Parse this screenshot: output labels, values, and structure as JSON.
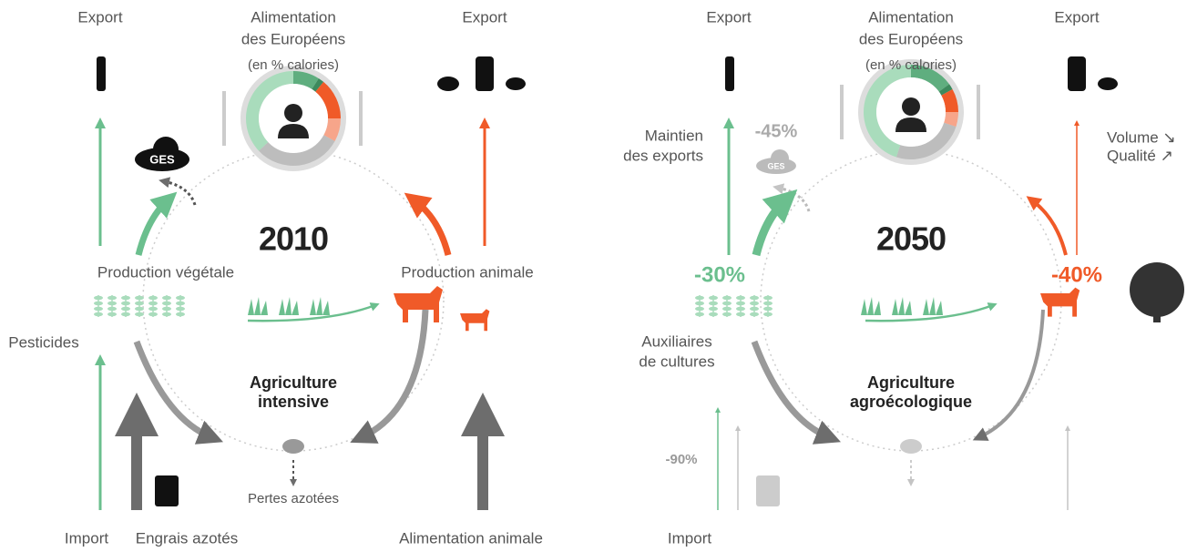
{
  "panels": [
    {
      "export_left": "Export",
      "diet_title": [
        "Alimentation",
        "des Européens"
      ],
      "diet_unit": "(en % calories)",
      "export_right": "Export",
      "ges": "GES",
      "year": "2010",
      "plant": "Production végétale",
      "animal": "Production animale",
      "pesticides": "Pesticides",
      "agriculture": [
        "Agriculture",
        "intensive"
      ],
      "losses": "Pertes azotées",
      "import": "Import",
      "fertilizer": "Engrais azotés",
      "feed": "Alimentation animale",
      "diet": [
        {
          "color": "#5fae7f",
          "value": 9
        },
        {
          "color": "#3d8a5d",
          "value": 2
        },
        {
          "color": "#f05a28",
          "value": 14
        },
        {
          "color": "#f7a58a",
          "value": 8
        },
        {
          "color": "#bdbdbd",
          "value": 30
        },
        {
          "color": "#a9dcbc",
          "value": 37
        }
      ]
    },
    {
      "export_left": "Export",
      "diet_title": [
        "Alimentation",
        "des Européens"
      ],
      "diet_unit": "(en % calories)",
      "export_right": "Export",
      "exports_note": [
        "Maintien",
        "des exports"
      ],
      "ges_change": "-45%",
      "ges": "GES",
      "volume": [
        "Volume ↘",
        "Qualité ↗"
      ],
      "year": "2050",
      "plant_change": "-30%",
      "animal_change": "-40%",
      "auxiliaries": [
        "Auxiliaires",
        "de cultures"
      ],
      "agriculture": [
        "Agriculture",
        "agroécologique"
      ],
      "import_change": "-90%",
      "import": "Import",
      "diet": [
        {
          "color": "#5fae7f",
          "value": 15
        },
        {
          "color": "#3d8a5d",
          "value": 2
        },
        {
          "color": "#f05a28",
          "value": 8
        },
        {
          "color": "#f7a58a",
          "value": 5
        },
        {
          "color": "#bdbdbd",
          "value": 25
        },
        {
          "color": "#a9dcbc",
          "value": 45
        }
      ]
    }
  ]
}
